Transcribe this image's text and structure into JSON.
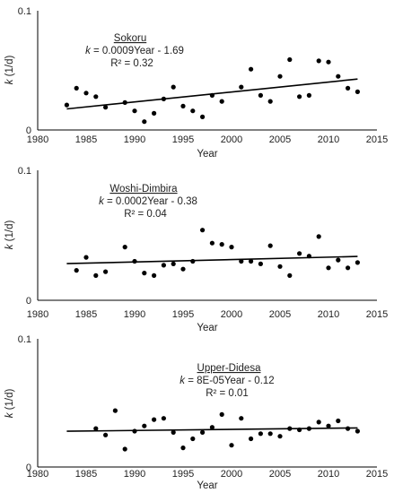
{
  "colors": {
    "points": "#000000",
    "trendline": "#000000",
    "axes": "#000000",
    "text": "#222222"
  },
  "chart_data": [
    {
      "type": "scatter",
      "title": "Sokoru",
      "equation_var": "k",
      "equation_rest": " = 0.0009Year - 1.69",
      "r2": "R² = 0.32",
      "xlabel": "Year",
      "ylabel_var": "k",
      "ylabel_unit": " (1/d)",
      "xlim": [
        1980,
        2015
      ],
      "ylim": [
        0,
        0.1
      ],
      "xticks": [
        "1980",
        "1985",
        "1990",
        "1995",
        "2000",
        "2005",
        "2010",
        "2015"
      ],
      "yticks": [
        "0",
        "0.1"
      ],
      "grid": false,
      "legend": "none",
      "x": [
        1983,
        1984,
        1985,
        1986,
        1987,
        1989,
        1990,
        1991,
        1992,
        1993,
        1994,
        1995,
        1996,
        1997,
        1998,
        1999,
        2001,
        2002,
        2003,
        2004,
        2005,
        2006,
        2007,
        2008,
        2009,
        2010,
        2011,
        2012,
        2013
      ],
      "y": [
        0.021,
        0.035,
        0.031,
        0.028,
        0.019,
        0.023,
        0.016,
        0.007,
        0.014,
        0.026,
        0.036,
        0.02,
        0.016,
        0.011,
        0.029,
        0.024,
        0.036,
        0.051,
        0.029,
        0.024,
        0.045,
        0.059,
        0.028,
        0.029,
        0.058,
        0.057,
        0.045,
        0.035,
        0.032
      ],
      "trendline": {
        "slope": 0.0009,
        "intercept": -1.69,
        "x_range": [
          1983,
          2013
        ],
        "y_range": [
          0.0177,
          0.0427
        ]
      }
    },
    {
      "type": "scatter",
      "title": "Woshi-Dimbira",
      "equation_var": "k",
      "equation_rest": " = 0.0002Year - 0.38",
      "r2": "R² = 0.04",
      "xlabel": "Year",
      "ylabel_var": "k",
      "ylabel_unit": " (1/d)",
      "xlim": [
        1980,
        2015
      ],
      "ylim": [
        0,
        0.1
      ],
      "xticks": [
        "1980",
        "1985",
        "1990",
        "1995",
        "2000",
        "2005",
        "2010",
        "2015"
      ],
      "yticks": [
        "0",
        "0.1"
      ],
      "grid": false,
      "legend": "none",
      "x": [
        1984,
        1985,
        1986,
        1987,
        1989,
        1990,
        1991,
        1992,
        1993,
        1994,
        1995,
        1996,
        1997,
        1998,
        1999,
        2000,
        2001,
        2002,
        2003,
        2004,
        2005,
        2006,
        2007,
        2008,
        2009,
        2010,
        2011,
        2012,
        2013
      ],
      "y": [
        0.023,
        0.033,
        0.019,
        0.022,
        0.041,
        0.03,
        0.021,
        0.019,
        0.027,
        0.028,
        0.024,
        0.03,
        0.054,
        0.044,
        0.043,
        0.041,
        0.03,
        0.03,
        0.028,
        0.042,
        0.026,
        0.019,
        0.036,
        0.034,
        0.049,
        0.025,
        0.031,
        0.025,
        0.029
      ],
      "trendline": {
        "slope": 0.0002,
        "intercept": -0.38,
        "x_range": [
          1983,
          2013
        ],
        "y_range": [
          0.0282,
          0.0337
        ]
      }
    },
    {
      "type": "scatter",
      "title": "Upper-Didesa",
      "equation_var": "k",
      "equation_rest": " = 8E-05Year - 0.12",
      "r2": "R² = 0.01",
      "xlabel": "Year",
      "ylabel_var": "k",
      "ylabel_unit": " (1/d)",
      "xlim": [
        1980,
        2015
      ],
      "ylim": [
        0,
        0.1
      ],
      "xticks": [
        "1980",
        "1985",
        "1990",
        "1995",
        "2000",
        "2005",
        "2010",
        "2015"
      ],
      "yticks": [
        "0",
        "0.1"
      ],
      "grid": false,
      "legend": "none",
      "x": [
        1986,
        1987,
        1988,
        1989,
        1990,
        1991,
        1992,
        1993,
        1994,
        1995,
        1996,
        1997,
        1998,
        1999,
        2000,
        2001,
        2002,
        2003,
        2004,
        2005,
        2006,
        2007,
        2008,
        2009,
        2010,
        2011,
        2012,
        2013
      ],
      "y": [
        0.03,
        0.025,
        0.044,
        0.014,
        0.028,
        0.032,
        0.037,
        0.038,
        0.027,
        0.015,
        0.022,
        0.027,
        0.031,
        0.041,
        0.017,
        0.038,
        0.022,
        0.026,
        0.026,
        0.024,
        0.03,
        0.029,
        0.03,
        0.035,
        0.032,
        0.036,
        0.03,
        0.028
      ],
      "trendline": {
        "slope": 8e-05,
        "intercept": -0.12,
        "x_range": [
          1983,
          2013
        ],
        "y_range": [
          0.0279,
          0.0305
        ]
      }
    }
  ]
}
